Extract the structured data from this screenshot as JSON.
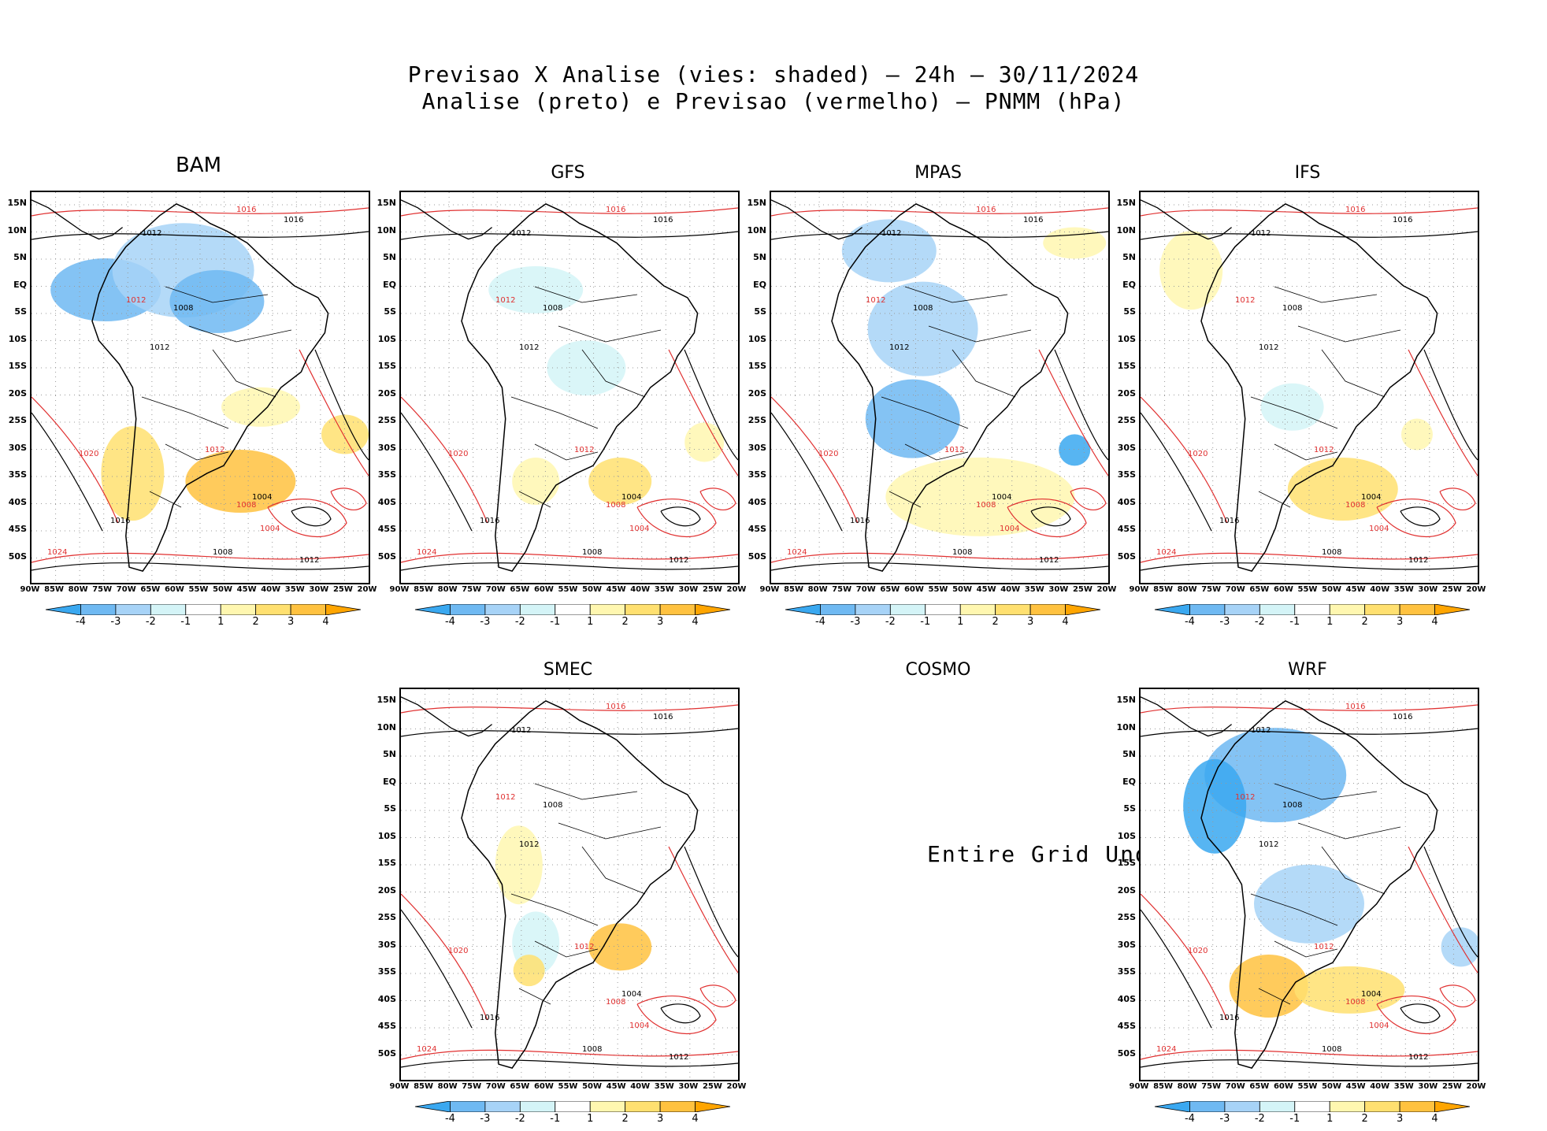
{
  "header": {
    "line1": "Previsao X Analise (vies: shaded) – 24h – 30/11/2024",
    "line2": "Analise (preto) e Previsao (vermelho) – PNMM (hPa)"
  },
  "lat_labels": [
    "15N",
    "10N",
    "5N",
    "EQ",
    "5S",
    "10S",
    "15S",
    "20S",
    "25S",
    "30S",
    "35S",
    "40S",
    "45S",
    "50S"
  ],
  "lon_labels": [
    "90W",
    "85W",
    "80W",
    "75W",
    "70W",
    "65W",
    "60W",
    "55W",
    "50W",
    "45W",
    "40W",
    "35W",
    "30W",
    "25W",
    "20W"
  ],
  "colorbar": {
    "labels": [
      "-4",
      "-3",
      "-2",
      "-1",
      "1",
      "2",
      "3",
      "4"
    ],
    "colors": [
      "#3aa8f0",
      "#6fb9f2",
      "#a7d3f7",
      "#d4f4f7",
      "#ffffff",
      "#fff7b0",
      "#ffe070",
      "#ffc240",
      "#ffa500"
    ]
  },
  "panels": [
    {
      "name": "BAM",
      "has_data": true
    },
    {
      "name": "GFS",
      "has_data": true
    },
    {
      "name": "MPAS",
      "has_data": true
    },
    {
      "name": "IFS",
      "has_data": true
    },
    {
      "name": "SMEC",
      "has_data": true
    },
    {
      "name": "COSMO",
      "has_data": false,
      "message": "Entire Grid Undef"
    },
    {
      "name": "WRF",
      "has_data": true
    }
  ],
  "contour_labels": {
    "analysis_color": "#000000",
    "forecast_color": "#e03030",
    "values": [
      "1004",
      "1008",
      "1012",
      "1016",
      "1020",
      "1024"
    ]
  }
}
